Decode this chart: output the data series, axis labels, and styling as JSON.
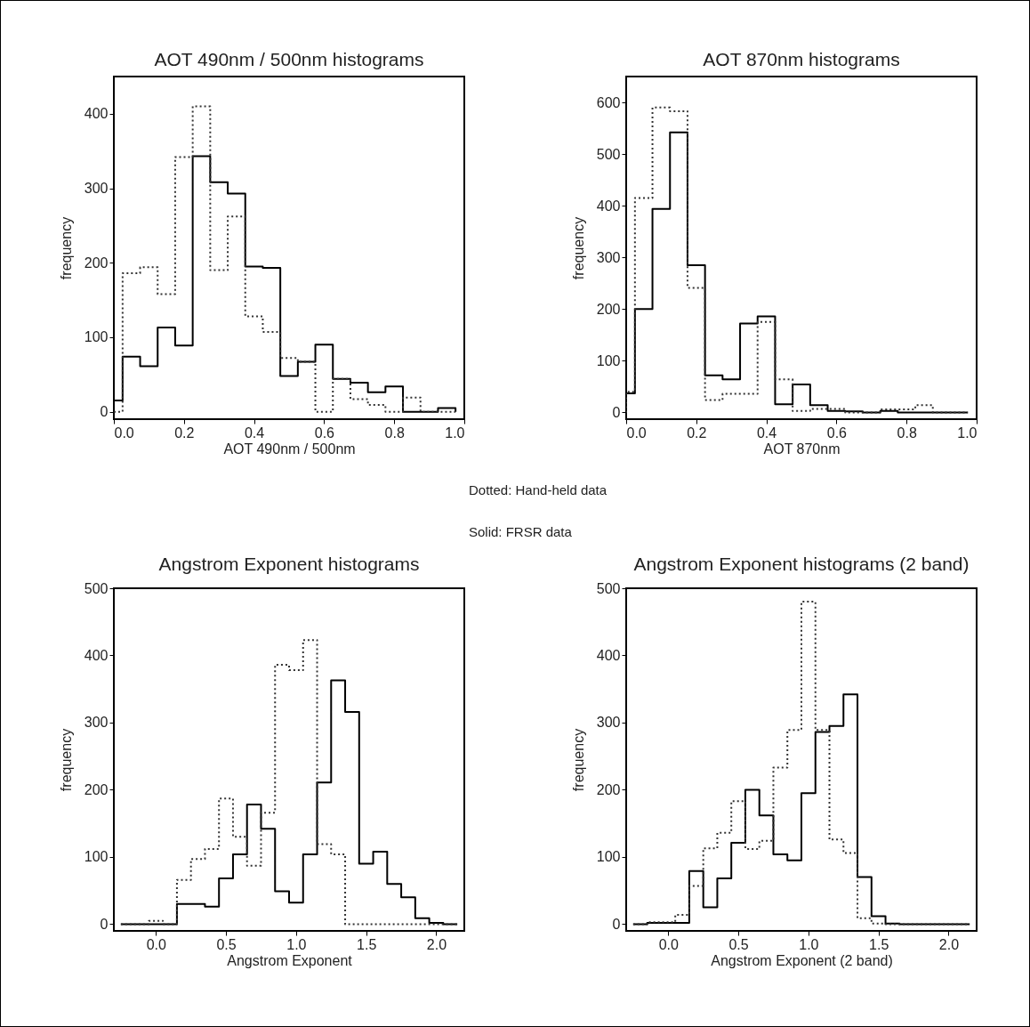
{
  "chart_data": [
    {
      "type": "histogram",
      "title": "AOT 490nm / 500nm histograms",
      "xlabel": "AOT 490nm / 500nm",
      "ylabel": "frequency",
      "bins": [
        0,
        0.025,
        0.075,
        0.125,
        0.175,
        0.225,
        0.275,
        0.325,
        0.375,
        0.425,
        0.475,
        0.525,
        0.575,
        0.625,
        0.675,
        0.725,
        0.775,
        0.825,
        0.875,
        0.925,
        0.975
      ],
      "series": [
        {
          "color": "#000000",
          "line_style": "solid",
          "values": [
            15,
            74,
            61,
            113,
            89,
            343,
            308,
            293,
            195,
            193,
            48,
            67,
            90,
            44,
            39,
            26,
            34,
            0,
            0,
            5
          ]
        },
        {
          "color": "#333333",
          "line_style": "dotted",
          "values": [
            0,
            186,
            194,
            158,
            342,
            410,
            190,
            262,
            128,
            107,
            72,
            67,
            0,
            44,
            17,
            9,
            0,
            19,
            0,
            0
          ]
        }
      ],
      "xlim": [
        0,
        1
      ],
      "ylim": [
        -10,
        450
      ],
      "xticks": [
        {
          "value": 0,
          "label": "0.0"
        },
        0.2,
        0.4,
        0.6,
        0.8,
        {
          "value": 1,
          "label": "1.0"
        }
      ],
      "yticks": [
        0,
        100,
        200,
        300,
        400
      ]
    },
    {
      "type": "histogram",
      "title": "AOT 870nm histograms",
      "xlabel": "AOT 870nm",
      "ylabel": "frequency",
      "bins": [
        0,
        0.025,
        0.075,
        0.125,
        0.175,
        0.225,
        0.275,
        0.325,
        0.375,
        0.425,
        0.475,
        0.525,
        0.575,
        0.625,
        0.675,
        0.725,
        0.775,
        0.825,
        0.875,
        0.925,
        0.975
      ],
      "series": [
        {
          "color": "#000000",
          "line_style": "solid",
          "values": [
            37,
            200,
            394,
            542,
            285,
            72,
            64,
            172,
            186,
            16,
            54,
            14,
            3,
            2,
            0,
            3,
            0,
            0,
            0,
            0
          ]
        },
        {
          "color": "#333333",
          "line_style": "dotted",
          "values": [
            40,
            415,
            590,
            583,
            241,
            24,
            36,
            36,
            175,
            64,
            3,
            7,
            7,
            0,
            0,
            6,
            6,
            14,
            0,
            0
          ]
        }
      ],
      "xlim": [
        0,
        1
      ],
      "ylim": [
        -13,
        650
      ],
      "xticks": [
        {
          "value": 0,
          "label": "0.0"
        },
        0.2,
        0.4,
        0.6,
        0.8,
        {
          "value": 1,
          "label": "1.0"
        }
      ],
      "yticks": [
        0,
        100,
        200,
        300,
        400,
        500,
        600
      ],
      "annotations": [
        "Dotted: Hand-held data",
        "Solid: FRSR data"
      ]
    },
    {
      "type": "histogram",
      "title": "Angstrom Exponent histograms",
      "xlabel": "Angstrom Exponent",
      "ylabel": "frequency",
      "bins": [
        -0.25,
        -0.15,
        -0.05,
        0.05,
        0.15,
        0.25,
        0.35,
        0.45,
        0.55,
        0.65,
        0.75,
        0.85,
        0.95,
        1.05,
        1.15,
        1.25,
        1.35,
        1.45,
        1.55,
        1.65,
        1.75,
        1.85,
        1.95,
        2.05,
        2.15
      ],
      "series": [
        {
          "color": "#000000",
          "line_style": "solid",
          "values": [
            0,
            0,
            0,
            0,
            30,
            30,
            26,
            68,
            104,
            178,
            142,
            49,
            32,
            104,
            211,
            363,
            316,
            90,
            108,
            60,
            40,
            9,
            2,
            0
          ]
        },
        {
          "color": "#333333",
          "line_style": "dotted",
          "values": [
            0,
            0,
            5,
            0,
            66,
            97,
            112,
            187,
            130,
            87,
            166,
            386,
            378,
            423,
            119,
            104,
            0,
            0,
            0,
            0,
            0,
            0,
            0,
            0
          ]
        }
      ],
      "xlim": [
        -0.3,
        2.2
      ],
      "ylim": [
        -10,
        500
      ],
      "xticks": [
        {
          "value": 0,
          "label": "0.0"
        },
        0.5,
        {
          "value": 1,
          "label": "1.0"
        },
        1.5,
        {
          "value": 2,
          "label": "2.0"
        }
      ],
      "yticks": [
        0,
        100,
        200,
        300,
        400,
        500
      ]
    },
    {
      "type": "histogram",
      "title": "Angstrom Exponent histograms (2 band)",
      "xlabel": "Angstrom Exponent (2 band)",
      "ylabel": "frequency",
      "bins": [
        -0.25,
        -0.15,
        -0.05,
        0.05,
        0.15,
        0.25,
        0.35,
        0.45,
        0.55,
        0.65,
        0.75,
        0.85,
        0.95,
        1.05,
        1.15,
        1.25,
        1.35,
        1.45,
        1.55,
        1.65,
        1.75,
        1.85,
        1.95,
        2.05,
        2.15
      ],
      "series": [
        {
          "color": "#000000",
          "line_style": "solid",
          "values": [
            0,
            2,
            2,
            2,
            79,
            25,
            68,
            121,
            200,
            162,
            104,
            95,
            195,
            286,
            295,
            342,
            70,
            12,
            1,
            0,
            0,
            0,
            0,
            0
          ]
        },
        {
          "color": "#333333",
          "line_style": "dotted",
          "values": [
            0,
            3,
            3,
            14,
            57,
            113,
            136,
            183,
            112,
            124,
            233,
            289,
            480,
            289,
            126,
            106,
            9,
            1,
            0,
            0,
            0,
            0,
            0,
            0
          ]
        }
      ],
      "xlim": [
        -0.3,
        2.2
      ],
      "ylim": [
        -10,
        500
      ],
      "xticks": [
        {
          "value": 0,
          "label": "0.0"
        },
        0.5,
        {
          "value": 1,
          "label": "1.0"
        },
        1.5,
        {
          "value": 2,
          "label": "2.0"
        }
      ],
      "yticks": [
        0,
        100,
        200,
        300,
        400,
        500
      ]
    }
  ]
}
